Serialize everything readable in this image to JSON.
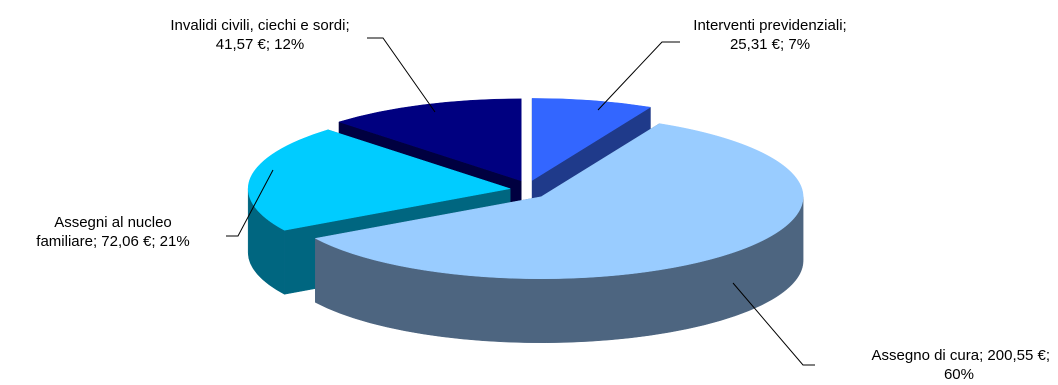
{
  "chart_data": {
    "type": "pie",
    "title": "",
    "three_d": true,
    "legend": "none",
    "slices": [
      {
        "category": "Interventi previdenziali",
        "value": 25.31,
        "percent": 7,
        "label_line1": "Interventi previdenziali;",
        "label_line2": "25,31 €; 7%",
        "top_color": "#3366FF",
        "side_color": "#1F3A8A"
      },
      {
        "category": "Assegno di cura",
        "value": 200.55,
        "percent": 60,
        "label_line1": "Assegno di cura; 200,55 €;",
        "label_line2": "60%",
        "top_color": "#99CCFF",
        "side_color": "#4D6580"
      },
      {
        "category": "Assegni al nucleo familiare",
        "value": 72.06,
        "percent": 21,
        "label_line1": "Assegni al nucleo",
        "label_line2": "familiare; 72,06 €; 21%",
        "top_color": "#00CCFF",
        "side_color": "#006680"
      },
      {
        "category": "Invalidi civili, ciechi e sordi",
        "value": 41.57,
        "percent": 12,
        "label_line1": "Invalidi civili, ciechi e sordi;",
        "label_line2": "41,57 €; 12%",
        "top_color": "#000080",
        "side_color": "#000040"
      }
    ]
  }
}
